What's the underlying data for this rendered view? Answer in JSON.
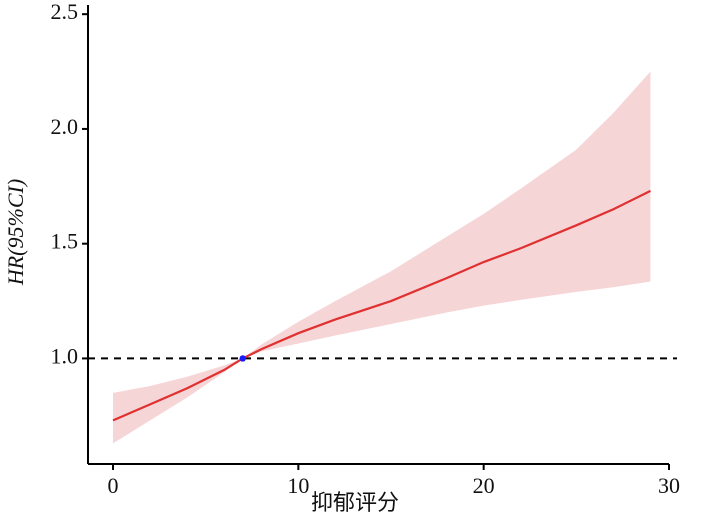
{
  "chart_data": {
    "type": "line",
    "x_label": "抑郁评分",
    "y_label": "HR(95%CI)",
    "x": [
      0,
      2,
      4,
      6,
      7,
      8,
      10,
      12,
      15,
      18,
      20,
      22,
      25,
      27,
      29
    ],
    "series": [
      {
        "name": "HR",
        "color": "#e03030",
        "values": [
          0.73,
          0.8,
          0.87,
          0.95,
          1.0,
          1.04,
          1.11,
          1.17,
          1.25,
          1.35,
          1.42,
          1.48,
          1.58,
          1.65,
          1.73
        ],
        "lower": [
          0.63,
          0.73,
          0.83,
          0.94,
          1.0,
          1.03,
          1.065,
          1.1,
          1.15,
          1.2,
          1.23,
          1.255,
          1.29,
          1.31,
          1.335
        ],
        "upper": [
          0.85,
          0.88,
          0.92,
          0.97,
          1.0,
          1.06,
          1.16,
          1.25,
          1.38,
          1.53,
          1.63,
          1.74,
          1.91,
          2.07,
          2.25
        ],
        "band_color": "#f6d5d7"
      }
    ],
    "reference_line": {
      "value": 1.0,
      "color": "#000000"
    },
    "reference_point": {
      "x": 7,
      "y": 1.0,
      "color": "#1a1aff"
    },
    "xlim": [
      -1.35,
      30
    ],
    "ylim": [
      0.54,
      2.54
    ],
    "xticks": [
      0,
      10,
      20,
      30
    ],
    "yticks": [
      {
        "value": 1.0,
        "label": "1.0"
      },
      {
        "value": 1.5,
        "label": "1.5"
      },
      {
        "value": 2.0,
        "label": "2.0"
      },
      {
        "value": 2.5,
        "label": "2.5"
      }
    ],
    "grid": false
  }
}
